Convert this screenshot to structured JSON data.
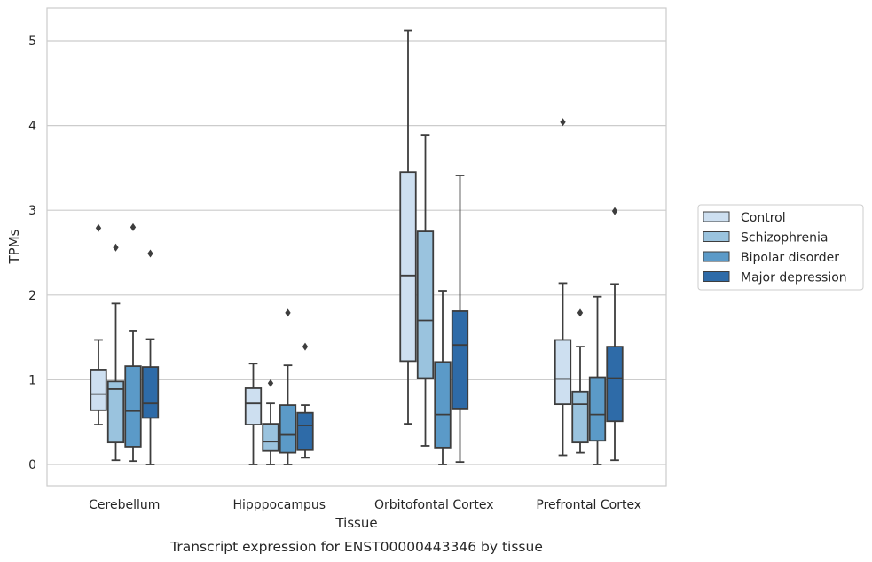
{
  "caption": "Transcript expression for ENST00000443346 by tissue",
  "chart_data": {
    "type": "boxplot",
    "xlabel": "Tissue",
    "ylabel": "TPMs",
    "ylim": [
      -0.25,
      5.38
    ],
    "yticks": [
      0,
      1,
      2,
      3,
      4,
      5
    ],
    "grid": "horizontal",
    "legend_position": "right",
    "categories": [
      "Cerebellum",
      "Hipppocampus",
      "Orbitofontal Cortex",
      "Prefrontal Cortex"
    ],
    "series": [
      {
        "name": "Control",
        "color": "#cddff0",
        "boxes": [
          {
            "whislo": 0.47,
            "q1": 0.64,
            "med": 0.83,
            "q3": 1.12,
            "whishi": 1.47,
            "fliers": [
              2.79
            ]
          },
          {
            "whislo": 0.0,
            "q1": 0.47,
            "med": 0.72,
            "q3": 0.9,
            "whishi": 1.19,
            "fliers": []
          },
          {
            "whislo": 0.48,
            "q1": 1.22,
            "med": 2.23,
            "q3": 3.45,
            "whishi": 5.12,
            "fliers": []
          },
          {
            "whislo": 0.11,
            "q1": 0.71,
            "med": 1.01,
            "q3": 1.47,
            "whishi": 2.14,
            "fliers": [
              4.04
            ]
          }
        ]
      },
      {
        "name": "Schizophrenia",
        "color": "#9ac3de",
        "boxes": [
          {
            "whislo": 0.05,
            "q1": 0.26,
            "med": 0.89,
            "q3": 0.98,
            "whishi": 1.9,
            "fliers": [
              2.56
            ]
          },
          {
            "whislo": 0.0,
            "q1": 0.16,
            "med": 0.27,
            "q3": 0.48,
            "whishi": 0.72,
            "fliers": [
              0.96
            ]
          },
          {
            "whislo": 0.22,
            "q1": 1.02,
            "med": 1.7,
            "q3": 2.75,
            "whishi": 3.89,
            "fliers": []
          },
          {
            "whislo": 0.14,
            "q1": 0.26,
            "med": 0.71,
            "q3": 0.86,
            "whishi": 1.39,
            "fliers": [
              1.79
            ]
          }
        ]
      },
      {
        "name": "Bipolar disorder",
        "color": "#5b9ac8",
        "boxes": [
          {
            "whislo": 0.04,
            "q1": 0.21,
            "med": 0.63,
            "q3": 1.16,
            "whishi": 1.58,
            "fliers": [
              2.8
            ]
          },
          {
            "whislo": 0.0,
            "q1": 0.14,
            "med": 0.35,
            "q3": 0.7,
            "whishi": 1.17,
            "fliers": [
              1.79
            ]
          },
          {
            "whislo": 0.0,
            "q1": 0.2,
            "med": 0.59,
            "q3": 1.21,
            "whishi": 2.05,
            "fliers": []
          },
          {
            "whislo": 0.0,
            "q1": 0.28,
            "med": 0.59,
            "q3": 1.03,
            "whishi": 1.98,
            "fliers": []
          }
        ]
      },
      {
        "name": "Major depression",
        "color": "#2e6ba8",
        "boxes": [
          {
            "whislo": 0.0,
            "q1": 0.55,
            "med": 0.72,
            "q3": 1.15,
            "whishi": 1.48,
            "fliers": [
              2.49
            ]
          },
          {
            "whislo": 0.08,
            "q1": 0.17,
            "med": 0.46,
            "q3": 0.61,
            "whishi": 0.7,
            "fliers": [
              1.39
            ]
          },
          {
            "whislo": 0.03,
            "q1": 0.66,
            "med": 1.41,
            "q3": 1.81,
            "whishi": 3.41,
            "fliers": []
          },
          {
            "whislo": 0.05,
            "q1": 0.51,
            "med": 1.02,
            "q3": 1.39,
            "whishi": 2.13,
            "fliers": [
              2.99
            ]
          }
        ]
      }
    ]
  }
}
